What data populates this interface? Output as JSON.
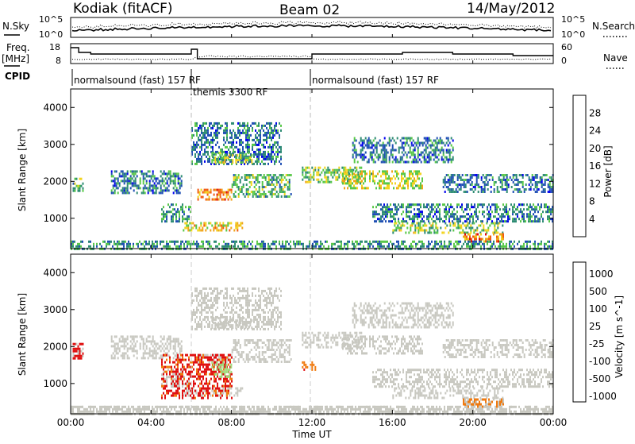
{
  "header": {
    "station": "Kodiak (fitACF)",
    "beam": "Beam 02",
    "date": "14/May/2012"
  },
  "strip_labels": {
    "nsky": "N.Sky",
    "nsearch": "N.Search",
    "freq_line1": "Freq.",
    "freq_line2": "[MHz]",
    "nave": "Nave",
    "cpid": "CPID"
  },
  "strip_ticks": {
    "noise_left": [
      "10^5",
      "10^0"
    ],
    "noise_right": [
      "10^5",
      "10^0"
    ],
    "freq_left": [
      "18",
      "8"
    ],
    "nave_right": [
      "60",
      "0"
    ]
  },
  "cpid_segments": [
    {
      "label": "normalsound (fast) 157 RF",
      "start_hour": 0,
      "end_hour": 6
    },
    {
      "label": "themis 3300 RF",
      "start_hour": 6,
      "end_hour": 12
    },
    {
      "label": "normalsound (fast) 157 RF",
      "start_hour": 12,
      "end_hour": 24
    }
  ],
  "axes": {
    "ylabel": "Slant Range [km]",
    "xlabel": "Time UT",
    "y_ticks": [
      "1000",
      "2000",
      "3000",
      "4000"
    ],
    "x_ticks": [
      "00:00",
      "04:00",
      "08:00",
      "12:00",
      "16:00",
      "20:00",
      "00:00"
    ]
  },
  "colorbars": {
    "power": {
      "label": "Power [dB]",
      "ticks": [
        "4",
        "8",
        "12",
        "16",
        "20",
        "24",
        "28"
      ],
      "colors": [
        "#0000ee",
        "#1f4fb4",
        "#2e8c73",
        "#58c848",
        "#f2d31c",
        "#f0a419",
        "#f05a12",
        "#e00a0a"
      ]
    },
    "velocity": {
      "label": "Velocity [m s^-1]",
      "ticks": [
        "1000",
        "500",
        "100",
        "25",
        "-25",
        "-100",
        "-500",
        "-1000"
      ],
      "colors": [
        "#2a44c8",
        "#2a7f62",
        "#56c040",
        "#9fdc7a",
        "#c8c8c0",
        "#f0a419",
        "#f07a10",
        "#e01010"
      ]
    }
  },
  "chart_data": {
    "type": "heatmap",
    "title": "Kodiak (fitACF) Beam 02 14/May/2012",
    "xlabel": "Time UT",
    "ylabel": "Slant Range [km]",
    "xlim_hours": [
      0,
      24
    ],
    "ylim_km": [
      180,
      4500
    ],
    "power_scale_db": [
      0,
      30
    ],
    "velocity_scale_ms": [
      -1000,
      1000
    ],
    "power_regions": [
      {
        "t0": 0.1,
        "t1": 0.6,
        "r0": 1750,
        "r1": 2100,
        "db": 12
      },
      {
        "t0": 2.0,
        "t1": 5.5,
        "r0": 1700,
        "r1": 2300,
        "db": 8
      },
      {
        "t0": 4.5,
        "t1": 6.0,
        "r0": 900,
        "r1": 1400,
        "db": 10
      },
      {
        "t0": 5.5,
        "t1": 8.5,
        "r0": 700,
        "r1": 900,
        "db": 18
      },
      {
        "t0": 6.3,
        "t1": 8.0,
        "r0": 1500,
        "r1": 1800,
        "db": 22
      },
      {
        "t0": 6.0,
        "t1": 10.5,
        "r0": 2500,
        "r1": 3600,
        "db": 8
      },
      {
        "t0": 7.0,
        "t1": 9.0,
        "r0": 2500,
        "r1": 2800,
        "db": 14
      },
      {
        "t0": 8.0,
        "t1": 11.0,
        "r0": 1600,
        "r1": 2200,
        "db": 12
      },
      {
        "t0": 11.5,
        "t1": 14.5,
        "r0": 2000,
        "r1": 2400,
        "db": 14
      },
      {
        "t0": 13.5,
        "t1": 17.5,
        "r0": 1800,
        "r1": 2300,
        "db": 16
      },
      {
        "t0": 14.0,
        "t1": 19.0,
        "r0": 2500,
        "r1": 3200,
        "db": 8
      },
      {
        "t0": 16.0,
        "t1": 21.5,
        "r0": 600,
        "r1": 900,
        "db": 14
      },
      {
        "t0": 19.5,
        "t1": 21.5,
        "r0": 350,
        "r1": 600,
        "db": 22
      },
      {
        "t0": 15.0,
        "t1": 24.0,
        "r0": 900,
        "r1": 1400,
        "db": 8
      },
      {
        "t0": 18.5,
        "t1": 24.0,
        "r0": 1700,
        "r1": 2200,
        "db": 8
      },
      {
        "t0": 0.0,
        "t1": 24.0,
        "r0": 180,
        "r1": 400,
        "db": 10
      }
    ],
    "velocity_regions": [
      {
        "t0": 0.1,
        "t1": 0.6,
        "r0": 1700,
        "r1": 2100,
        "vel": -500
      },
      {
        "t0": 4.5,
        "t1": 8.0,
        "r0": 600,
        "r1": 1800,
        "vel": -300
      },
      {
        "t0": 7.0,
        "t1": 8.0,
        "r0": 1200,
        "r1": 1600,
        "vel": 40
      },
      {
        "t0": 11.5,
        "t1": 12.2,
        "r0": 1400,
        "r1": 1600,
        "vel": -200
      },
      {
        "t0": 19.5,
        "t1": 21.5,
        "r0": 350,
        "r1": 600,
        "vel": -150
      },
      {
        "t0": 0.0,
        "t1": 24.0,
        "r0": 180,
        "r1": 400,
        "vel": 0
      }
    ]
  }
}
